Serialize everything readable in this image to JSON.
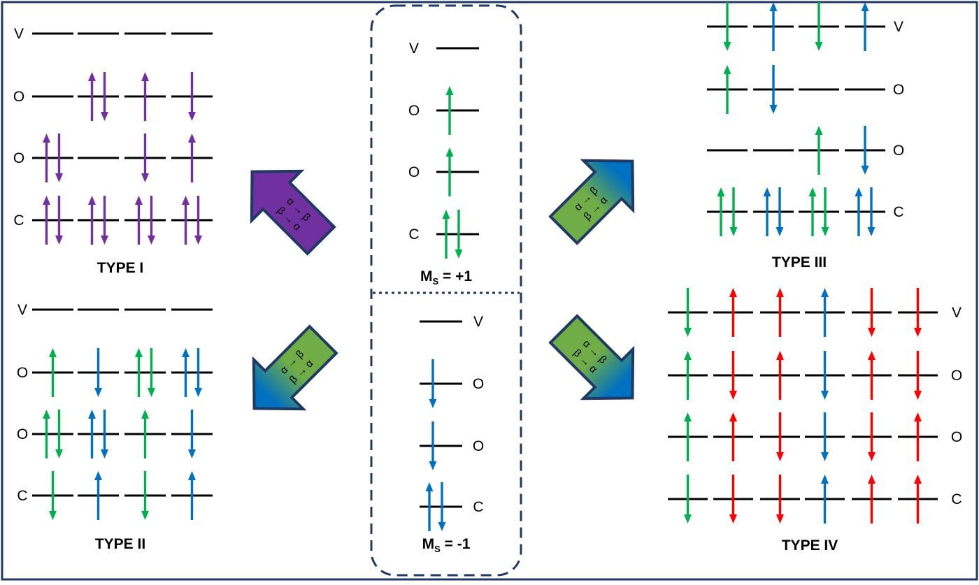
{
  "colors": {
    "frame": "#1f3864",
    "level": "#000000",
    "purple": "#7030a0",
    "green": "#00b050",
    "blue": "#0070c0",
    "red": "#ff0000",
    "arrow_green": "#70ad47",
    "arrow_blue": "#0070c0"
  },
  "center": {
    "top": {
      "label": "M",
      "subscript": "S",
      "value": " = +1",
      "levels": [
        {
          "name": "V",
          "arrows": []
        },
        {
          "name": "O",
          "arrows": [
            "up"
          ]
        },
        {
          "name": "O",
          "arrows": [
            "up"
          ]
        },
        {
          "name": "C",
          "arrows": [
            "up",
            "down"
          ]
        }
      ],
      "arrow_color": "green"
    },
    "bottom": {
      "label": "M",
      "subscript": "S",
      "value": " = -1",
      "levels": [
        {
          "name": "V",
          "arrows": []
        },
        {
          "name": "O",
          "arrows": [
            "down"
          ]
        },
        {
          "name": "O",
          "arrows": [
            "down"
          ]
        },
        {
          "name": "C",
          "arrows": [
            "up",
            "down"
          ]
        }
      ],
      "arrow_color": "blue"
    }
  },
  "transfer_arrows": [
    {
      "id": "to-type-i",
      "line1": "α → β",
      "line2": "β → α",
      "style": "purple"
    },
    {
      "id": "to-type-ii",
      "line1": "α → β",
      "line2": "β → α",
      "style": "green-blue"
    },
    {
      "id": "to-type-iii",
      "line1": "α → β",
      "line2": "β → α",
      "style": "green-blue"
    },
    {
      "id": "to-type-iv",
      "line1": "α → β",
      "line2": "β → α",
      "style": "green-blue"
    }
  ],
  "types": [
    {
      "id": "type-i",
      "title": "TYPE I",
      "label_side": "left",
      "levels": [
        {
          "name": "V",
          "cols": [
            [],
            [],
            [],
            []
          ]
        },
        {
          "name": "O",
          "cols": [
            [],
            [
              [
                "up",
                "purple"
              ],
              [
                "down",
                "purple"
              ]
            ],
            [
              [
                "up",
                "purple"
              ]
            ],
            [
              [
                "down",
                "purple"
              ]
            ]
          ]
        },
        {
          "name": "O",
          "cols": [
            [
              [
                "up",
                "purple"
              ],
              [
                "down",
                "purple"
              ]
            ],
            [],
            [
              [
                "down",
                "purple"
              ]
            ],
            [
              [
                "up",
                "purple"
              ]
            ]
          ]
        },
        {
          "name": "C",
          "cols": [
            [
              [
                "up",
                "purple"
              ],
              [
                "down",
                "purple"
              ]
            ],
            [
              [
                "up",
                "purple"
              ],
              [
                "down",
                "purple"
              ]
            ],
            [
              [
                "up",
                "purple"
              ],
              [
                "down",
                "purple"
              ]
            ],
            [
              [
                "up",
                "purple"
              ],
              [
                "down",
                "purple"
              ]
            ]
          ]
        }
      ]
    },
    {
      "id": "type-ii",
      "title": "TYPE II",
      "label_side": "left",
      "levels": [
        {
          "name": "V",
          "cols": [
            [],
            [],
            [],
            []
          ]
        },
        {
          "name": "O",
          "cols": [
            [
              [
                "up",
                "green"
              ]
            ],
            [
              [
                "down",
                "blue"
              ]
            ],
            [
              [
                "up",
                "green"
              ],
              [
                "down",
                "green"
              ]
            ],
            [
              [
                "up",
                "blue"
              ],
              [
                "down",
                "blue"
              ]
            ]
          ]
        },
        {
          "name": "O",
          "cols": [
            [
              [
                "up",
                "green"
              ],
              [
                "down",
                "green"
              ]
            ],
            [
              [
                "up",
                "blue"
              ],
              [
                "down",
                "blue"
              ]
            ],
            [
              [
                "up",
                "green"
              ]
            ],
            [
              [
                "down",
                "blue"
              ]
            ]
          ]
        },
        {
          "name": "C",
          "cols": [
            [
              [
                "down",
                "green"
              ]
            ],
            [
              [
                "up",
                "blue"
              ]
            ],
            [
              [
                "down",
                "green"
              ]
            ],
            [
              [
                "up",
                "blue"
              ]
            ]
          ]
        }
      ]
    },
    {
      "id": "type-iii",
      "title": "TYPE III",
      "label_side": "right",
      "levels": [
        {
          "name": "V",
          "cols": [
            [
              [
                "down",
                "green"
              ]
            ],
            [
              [
                "up",
                "blue"
              ]
            ],
            [
              [
                "down",
                "green"
              ]
            ],
            [
              [
                "up",
                "blue"
              ]
            ]
          ]
        },
        {
          "name": "O",
          "cols": [
            [
              [
                "up",
                "green"
              ]
            ],
            [
              [
                "down",
                "blue"
              ]
            ],
            [],
            []
          ]
        },
        {
          "name": "O",
          "cols": [
            [],
            [],
            [
              [
                "up",
                "green"
              ]
            ],
            [
              [
                "down",
                "blue"
              ]
            ]
          ]
        },
        {
          "name": "C",
          "cols": [
            [
              [
                "up",
                "green"
              ],
              [
                "down",
                "green"
              ]
            ],
            [
              [
                "up",
                "blue"
              ],
              [
                "down",
                "blue"
              ]
            ],
            [
              [
                "up",
                "green"
              ],
              [
                "down",
                "green"
              ]
            ],
            [
              [
                "up",
                "blue"
              ],
              [
                "down",
                "blue"
              ]
            ]
          ]
        }
      ]
    },
    {
      "id": "type-iv",
      "title": "TYPE IV",
      "label_side": "right",
      "levels": [
        {
          "name": "V",
          "cols": [
            [
              [
                "down",
                "green"
              ]
            ],
            [
              [
                "up",
                "red"
              ]
            ],
            [
              [
                "up",
                "red"
              ]
            ],
            [
              [
                "up",
                "blue"
              ]
            ],
            [
              [
                "down",
                "red"
              ]
            ],
            [
              [
                "down",
                "red"
              ]
            ]
          ]
        },
        {
          "name": "O",
          "cols": [
            [
              [
                "up",
                "green"
              ]
            ],
            [
              [
                "down",
                "red"
              ]
            ],
            [
              [
                "up",
                "red"
              ]
            ],
            [
              [
                "down",
                "blue"
              ]
            ],
            [
              [
                "up",
                "red"
              ]
            ],
            [
              [
                "down",
                "red"
              ]
            ]
          ]
        },
        {
          "name": "O",
          "cols": [
            [
              [
                "up",
                "green"
              ]
            ],
            [
              [
                "up",
                "red"
              ]
            ],
            [
              [
                "down",
                "red"
              ]
            ],
            [
              [
                "down",
                "blue"
              ]
            ],
            [
              [
                "down",
                "red"
              ]
            ],
            [
              [
                "up",
                "red"
              ]
            ]
          ]
        },
        {
          "name": "C",
          "cols": [
            [
              [
                "down",
                "green"
              ]
            ],
            [
              [
                "down",
                "red"
              ]
            ],
            [
              [
                "down",
                "red"
              ]
            ],
            [
              [
                "up",
                "blue"
              ]
            ],
            [
              [
                "up",
                "red"
              ]
            ],
            [
              [
                "up",
                "red"
              ]
            ]
          ]
        }
      ]
    }
  ]
}
